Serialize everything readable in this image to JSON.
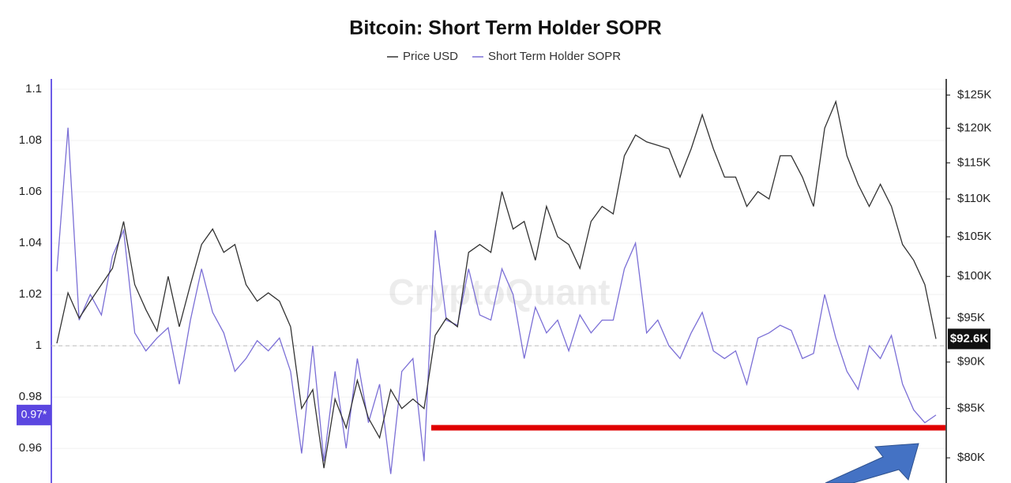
{
  "chart_data": {
    "type": "line",
    "title": "Bitcoin: Short Term Holder SOPR",
    "watermark": "CryptoQuant",
    "series": [
      {
        "name": "Price USD",
        "color": "#333333",
        "axis": "y2",
        "values": [
          92100,
          98000,
          95000,
          97000,
          99000,
          101000,
          107000,
          99000,
          96000,
          93500,
          100000,
          94000,
          99000,
          104000,
          106000,
          103000,
          104000,
          99000,
          97000,
          98000,
          97000,
          94000,
          85000,
          87000,
          79000,
          86000,
          83000,
          88000,
          84000,
          82000,
          87000,
          85000,
          86000,
          85000,
          93000,
          95000,
          94000,
          103000,
          104000,
          103000,
          111000,
          106000,
          107000,
          102000,
          109000,
          105000,
          104000,
          101000,
          107000,
          109000,
          108000,
          116000,
          119000,
          118000,
          117500,
          117000,
          113000,
          117000,
          122000,
          117000,
          113000,
          113000,
          109000,
          111000,
          110000,
          116000,
          116000,
          113000,
          109000,
          120000,
          124000,
          116000,
          112000,
          109000,
          112000,
          109000,
          104000,
          102000,
          99000,
          92600
        ]
      },
      {
        "name": "Short Term Holder SOPR",
        "color": "#7b6fd6",
        "axis": "y",
        "values": [
          1.029,
          1.085,
          1.01,
          1.02,
          1.012,
          1.035,
          1.045,
          1.005,
          0.998,
          1.003,
          1.007,
          0.985,
          1.01,
          1.03,
          1.013,
          1.005,
          0.99,
          0.995,
          1.002,
          0.998,
          1.003,
          0.99,
          0.958,
          1.0,
          0.955,
          0.99,
          0.96,
          0.995,
          0.97,
          0.985,
          0.95,
          0.99,
          0.995,
          0.955,
          1.045,
          1.01,
          1.008,
          1.03,
          1.012,
          1.01,
          1.03,
          1.02,
          0.995,
          1.015,
          1.005,
          1.01,
          0.998,
          1.012,
          1.005,
          1.01,
          1.01,
          1.03,
          1.04,
          1.005,
          1.01,
          1.0,
          0.995,
          1.005,
          1.013,
          0.998,
          0.995,
          0.998,
          0.985,
          1.003,
          1.005,
          1.008,
          1.006,
          0.995,
          0.997,
          1.02,
          1.003,
          0.99,
          0.983,
          1.0,
          0.995,
          1.004,
          0.985,
          0.975,
          0.97,
          0.973
        ]
      }
    ],
    "ylim": [
      0.9465,
      1.104
    ],
    "yticks": [
      0.96,
      0.98,
      1,
      1.02,
      1.04,
      1.06,
      1.08,
      1.1
    ],
    "y2lim": [
      77560,
      127500
    ],
    "y2log": true,
    "y2ticks": [
      {
        "value": 80000,
        "label": "$80K"
      },
      {
        "value": 85000,
        "label": "$85K"
      },
      {
        "value": 90000,
        "label": "$90K"
      },
      {
        "value": 95000,
        "label": "$95K"
      },
      {
        "value": 100000,
        "label": "$100K"
      },
      {
        "value": 105000,
        "label": "$105K"
      },
      {
        "value": 110000,
        "label": "$110K"
      },
      {
        "value": 115000,
        "label": "$115K"
      },
      {
        "value": 120000,
        "label": "$120K"
      },
      {
        "value": 125000,
        "label": "$125K"
      }
    ],
    "reference_line": 1,
    "current_sopr_label": "0.97*",
    "current_price_label": "$92.6K",
    "grid": true
  }
}
